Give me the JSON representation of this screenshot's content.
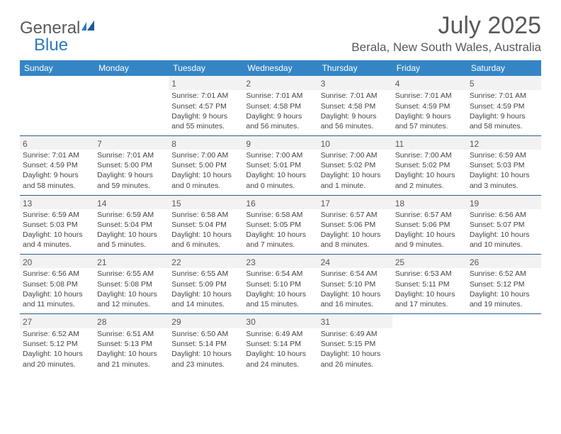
{
  "logo": {
    "word1": "General",
    "word2": "Blue"
  },
  "title": "July 2025",
  "location": "Berala, New South Wales, Australia",
  "colors": {
    "header_bg": "#3585c6",
    "header_text": "#ffffff",
    "border": "#2b5e8a",
    "daynum_bg": "#f2f2f2",
    "text_gray": "#595959",
    "logo_gray": "#5a5a5a",
    "logo_blue": "#2b7bbf"
  },
  "day_headers": [
    "Sunday",
    "Monday",
    "Tuesday",
    "Wednesday",
    "Thursday",
    "Friday",
    "Saturday"
  ],
  "weeks": [
    [
      null,
      null,
      {
        "n": "1",
        "sr": "7:01 AM",
        "ss": "4:57 PM",
        "dl": "9 hours and 55 minutes."
      },
      {
        "n": "2",
        "sr": "7:01 AM",
        "ss": "4:58 PM",
        "dl": "9 hours and 56 minutes."
      },
      {
        "n": "3",
        "sr": "7:01 AM",
        "ss": "4:58 PM",
        "dl": "9 hours and 56 minutes."
      },
      {
        "n": "4",
        "sr": "7:01 AM",
        "ss": "4:59 PM",
        "dl": "9 hours and 57 minutes."
      },
      {
        "n": "5",
        "sr": "7:01 AM",
        "ss": "4:59 PM",
        "dl": "9 hours and 58 minutes."
      }
    ],
    [
      {
        "n": "6",
        "sr": "7:01 AM",
        "ss": "4:59 PM",
        "dl": "9 hours and 58 minutes."
      },
      {
        "n": "7",
        "sr": "7:01 AM",
        "ss": "5:00 PM",
        "dl": "9 hours and 59 minutes."
      },
      {
        "n": "8",
        "sr": "7:00 AM",
        "ss": "5:00 PM",
        "dl": "10 hours and 0 minutes."
      },
      {
        "n": "9",
        "sr": "7:00 AM",
        "ss": "5:01 PM",
        "dl": "10 hours and 0 minutes."
      },
      {
        "n": "10",
        "sr": "7:00 AM",
        "ss": "5:02 PM",
        "dl": "10 hours and 1 minute."
      },
      {
        "n": "11",
        "sr": "7:00 AM",
        "ss": "5:02 PM",
        "dl": "10 hours and 2 minutes."
      },
      {
        "n": "12",
        "sr": "6:59 AM",
        "ss": "5:03 PM",
        "dl": "10 hours and 3 minutes."
      }
    ],
    [
      {
        "n": "13",
        "sr": "6:59 AM",
        "ss": "5:03 PM",
        "dl": "10 hours and 4 minutes."
      },
      {
        "n": "14",
        "sr": "6:59 AM",
        "ss": "5:04 PM",
        "dl": "10 hours and 5 minutes."
      },
      {
        "n": "15",
        "sr": "6:58 AM",
        "ss": "5:04 PM",
        "dl": "10 hours and 6 minutes."
      },
      {
        "n": "16",
        "sr": "6:58 AM",
        "ss": "5:05 PM",
        "dl": "10 hours and 7 minutes."
      },
      {
        "n": "17",
        "sr": "6:57 AM",
        "ss": "5:06 PM",
        "dl": "10 hours and 8 minutes."
      },
      {
        "n": "18",
        "sr": "6:57 AM",
        "ss": "5:06 PM",
        "dl": "10 hours and 9 minutes."
      },
      {
        "n": "19",
        "sr": "6:56 AM",
        "ss": "5:07 PM",
        "dl": "10 hours and 10 minutes."
      }
    ],
    [
      {
        "n": "20",
        "sr": "6:56 AM",
        "ss": "5:08 PM",
        "dl": "10 hours and 11 minutes."
      },
      {
        "n": "21",
        "sr": "6:55 AM",
        "ss": "5:08 PM",
        "dl": "10 hours and 12 minutes."
      },
      {
        "n": "22",
        "sr": "6:55 AM",
        "ss": "5:09 PM",
        "dl": "10 hours and 14 minutes."
      },
      {
        "n": "23",
        "sr": "6:54 AM",
        "ss": "5:10 PM",
        "dl": "10 hours and 15 minutes."
      },
      {
        "n": "24",
        "sr": "6:54 AM",
        "ss": "5:10 PM",
        "dl": "10 hours and 16 minutes."
      },
      {
        "n": "25",
        "sr": "6:53 AM",
        "ss": "5:11 PM",
        "dl": "10 hours and 17 minutes."
      },
      {
        "n": "26",
        "sr": "6:52 AM",
        "ss": "5:12 PM",
        "dl": "10 hours and 19 minutes."
      }
    ],
    [
      {
        "n": "27",
        "sr": "6:52 AM",
        "ss": "5:12 PM",
        "dl": "10 hours and 20 minutes."
      },
      {
        "n": "28",
        "sr": "6:51 AM",
        "ss": "5:13 PM",
        "dl": "10 hours and 21 minutes."
      },
      {
        "n": "29",
        "sr": "6:50 AM",
        "ss": "5:14 PM",
        "dl": "10 hours and 23 minutes."
      },
      {
        "n": "30",
        "sr": "6:49 AM",
        "ss": "5:14 PM",
        "dl": "10 hours and 24 minutes."
      },
      {
        "n": "31",
        "sr": "6:49 AM",
        "ss": "5:15 PM",
        "dl": "10 hours and 26 minutes."
      },
      null,
      null
    ]
  ],
  "labels": {
    "sunrise": "Sunrise:",
    "sunset": "Sunset:",
    "daylight": "Daylight:"
  }
}
